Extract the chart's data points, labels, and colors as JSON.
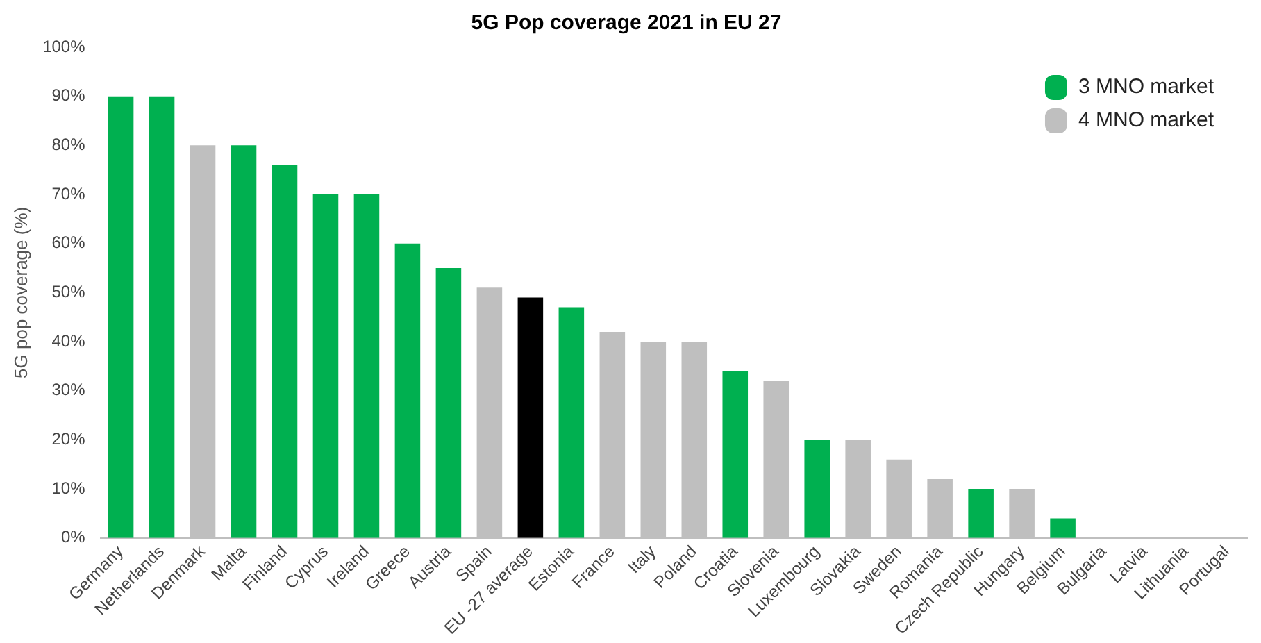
{
  "chart_data": {
    "type": "bar",
    "title": "5G Pop coverage 2021 in EU 27",
    "ylabel": "5G pop coverage (%)",
    "categories": [
      "Germany",
      "Netherlands",
      "Denmark",
      "Malta",
      "Finland",
      "Cyprus",
      "Ireland",
      "Greece",
      "Austria",
      "Spain",
      "EU -27 average",
      "Estonia",
      "France",
      "Italy",
      "Poland",
      "Croatia",
      "Slovenia",
      "Luxembourg",
      "Slovakia",
      "Sweden",
      "Romania",
      "Czech Republic",
      "Hungary",
      "Belgium",
      "Bulgaria",
      "Latvia",
      "Lithuania",
      "Portugal"
    ],
    "series": [
      {
        "name": "3 MNO market",
        "color": "#00b050",
        "values": [
          90,
          90,
          null,
          80,
          76,
          70,
          70,
          60,
          55,
          null,
          null,
          47,
          null,
          null,
          null,
          34,
          null,
          20,
          null,
          null,
          null,
          10,
          null,
          4,
          null,
          null,
          null,
          null
        ]
      },
      {
        "name": "4 MNO market",
        "color": "#bfbfbf",
        "values": [
          null,
          null,
          80,
          null,
          null,
          null,
          null,
          null,
          null,
          51,
          null,
          null,
          42,
          40,
          40,
          null,
          32,
          null,
          20,
          16,
          12,
          null,
          10,
          null,
          0,
          0,
          0,
          0
        ]
      },
      {
        "color": "#000000",
        "values": [
          null,
          null,
          null,
          null,
          null,
          null,
          null,
          null,
          null,
          null,
          49,
          null,
          null,
          null,
          null,
          null,
          null,
          null,
          null,
          null,
          null,
          null,
          null,
          null,
          null,
          null,
          null,
          null
        ]
      }
    ],
    "ylim": [
      0,
      100
    ],
    "yticks": [
      {
        "value": 0,
        "label": "0%"
      },
      {
        "value": 10,
        "label": "10%"
      },
      {
        "value": 20,
        "label": "20%"
      },
      {
        "value": 30,
        "label": "30%"
      },
      {
        "value": 40,
        "label": "40%"
      },
      {
        "value": 50,
        "label": "50%"
      },
      {
        "value": 60,
        "label": "60%"
      },
      {
        "value": 70,
        "label": "70%"
      },
      {
        "value": 80,
        "label": "80%"
      },
      {
        "value": 90,
        "label": "90%"
      },
      {
        "value": 100,
        "label": "100%"
      }
    ],
    "grid": false,
    "legend": "top right"
  }
}
